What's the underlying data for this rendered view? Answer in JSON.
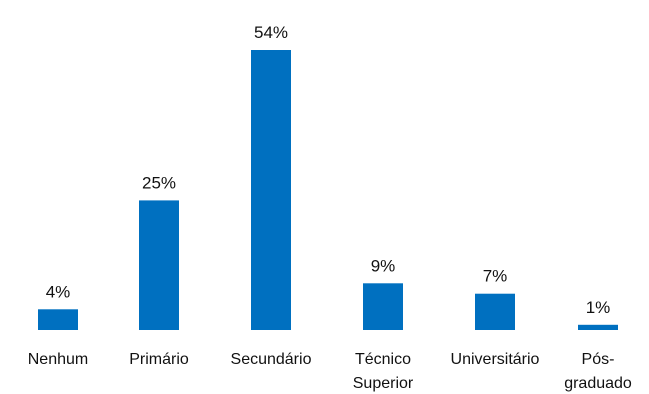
{
  "chart_data": {
    "type": "bar",
    "categories": [
      [
        "Nenhum"
      ],
      [
        "Primário"
      ],
      [
        "Secundário"
      ],
      [
        "Técnico",
        "Superior"
      ],
      [
        "Universitário"
      ],
      [
        "Pós-",
        "graduado"
      ]
    ],
    "values": [
      4,
      25,
      54,
      9,
      7,
      1
    ],
    "data_labels": [
      "4%",
      "25%",
      "54%",
      "9%",
      "7%",
      "1%"
    ],
    "bar_color": "#0070C0",
    "ylim": [
      0,
      54
    ],
    "grid": false,
    "legend": "none",
    "title": "",
    "xlabel": "",
    "ylabel": ""
  }
}
